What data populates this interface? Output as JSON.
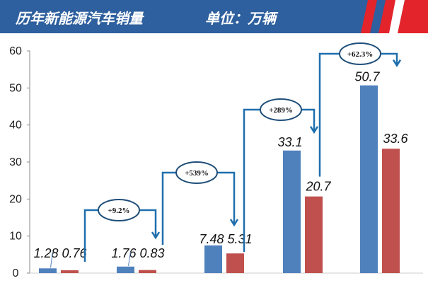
{
  "header": {
    "title": "历年新能源汽车销量",
    "unit": "单位：万辆",
    "band_color": "#2e5f9e",
    "stripe_color": "#e3242b"
  },
  "chart_data": {
    "type": "bar",
    "title": "历年新能源汽车销量",
    "subtitle": "单位：万辆",
    "categories": [
      "",
      "",
      "",
      "",
      ""
    ],
    "series": [
      {
        "name": "series-blue",
        "color": "#4f81bd",
        "values": [
          1.28,
          1.76,
          7.48,
          33.1,
          50.7
        ]
      },
      {
        "name": "series-red",
        "color": "#c0504d",
        "values": [
          0.76,
          0.83,
          5.31,
          20.7,
          33.6
        ]
      }
    ],
    "value_labels": {
      "series-blue": [
        "1.28",
        "1.76",
        "7.48",
        "33.1",
        "50.7"
      ],
      "series-red": [
        "0.76",
        "0.83",
        "5.31",
        "20.7",
        "33.6"
      ]
    },
    "ylim": [
      0,
      60
    ],
    "yticks": [
      "0",
      "10",
      "20",
      "30",
      "40",
      "50",
      "60"
    ],
    "grid": false,
    "annotations": [
      {
        "text": "+9.2%",
        "from": 0,
        "to": 1
      },
      {
        "text": "+539%",
        "from": 1,
        "to": 2
      },
      {
        "text": "+289%",
        "from": 2,
        "to": 3
      },
      {
        "text": "+62.3%",
        "from": 3,
        "to": 4
      }
    ]
  }
}
